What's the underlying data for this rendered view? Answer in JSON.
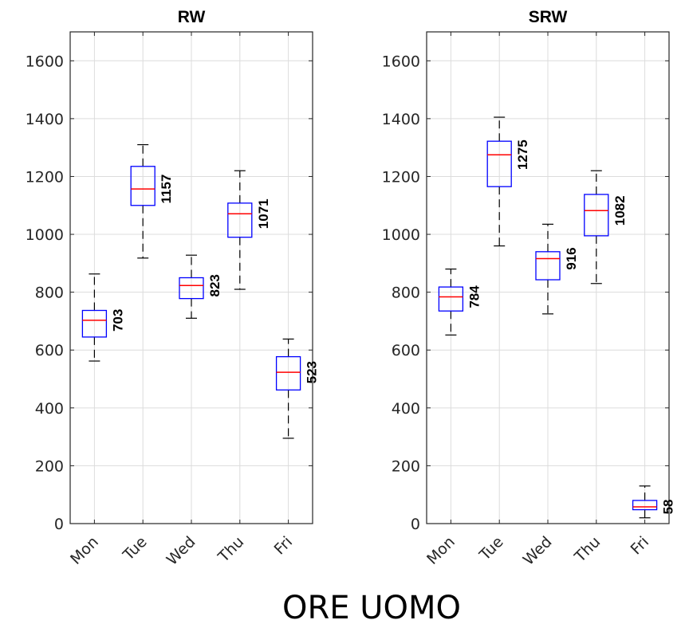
{
  "figure": {
    "suptitle": "ORE UOMO"
  },
  "chart_data": [
    {
      "type": "box",
      "title": "RW",
      "xlabel": "",
      "ylabel": "",
      "ylim": [
        0,
        1700
      ],
      "yticks": [
        0,
        200,
        400,
        600,
        800,
        1000,
        1200,
        1400,
        1600
      ],
      "grid": true,
      "categories": [
        "Mon",
        "Tue",
        "Wed",
        "Thu",
        "Fri"
      ],
      "boxes": [
        {
          "min": 562,
          "q1": 645,
          "median": 703,
          "q3": 737,
          "max": 863,
          "label": "703"
        },
        {
          "min": 918,
          "q1": 1100,
          "median": 1157,
          "q3": 1235,
          "max": 1310,
          "label": "1157"
        },
        {
          "min": 710,
          "q1": 778,
          "median": 823,
          "q3": 850,
          "max": 928,
          "label": "823"
        },
        {
          "min": 810,
          "q1": 990,
          "median": 1071,
          "q3": 1108,
          "max": 1220,
          "label": "1071"
        },
        {
          "min": 295,
          "q1": 462,
          "median": 523,
          "q3": 577,
          "max": 638,
          "label": "523"
        }
      ]
    },
    {
      "type": "box",
      "title": "SRW",
      "xlabel": "",
      "ylabel": "",
      "ylim": [
        0,
        1700
      ],
      "yticks": [
        0,
        200,
        400,
        600,
        800,
        1000,
        1200,
        1400,
        1600
      ],
      "grid": true,
      "categories": [
        "Mon",
        "Tue",
        "Wed",
        "Thu",
        "Fri"
      ],
      "boxes": [
        {
          "min": 652,
          "q1": 735,
          "median": 784,
          "q3": 818,
          "max": 880,
          "label": "784"
        },
        {
          "min": 960,
          "q1": 1165,
          "median": 1275,
          "q3": 1322,
          "max": 1405,
          "label": "1275"
        },
        {
          "min": 725,
          "q1": 843,
          "median": 916,
          "q3": 940,
          "max": 1035,
          "label": "916"
        },
        {
          "min": 830,
          "q1": 995,
          "median": 1082,
          "q3": 1138,
          "max": 1220,
          "label": "1082"
        },
        {
          "min": 20,
          "q1": 48,
          "median": 58,
          "q3": 80,
          "max": 130,
          "label": "58"
        }
      ]
    }
  ]
}
